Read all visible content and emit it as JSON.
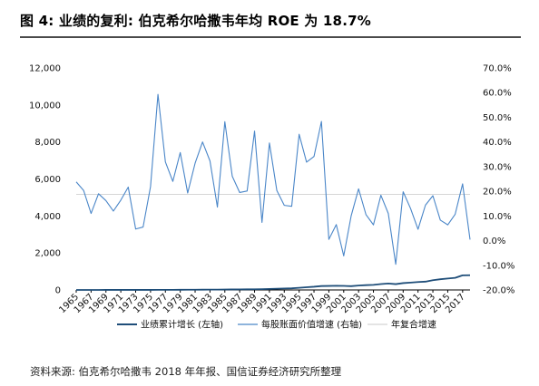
{
  "title": "图 4:  业绩的复利: 伯克希尔哈撒韦年均 ROE 为 18.7%",
  "source": "资料来源: 伯克希尔哈撒韦 2018 年年报、国信证券经济研究所整理",
  "colors": {
    "earnings": "#1f4e79",
    "growth": "#4a86c8",
    "average": "#c8c8c8",
    "axis": "#000000"
  },
  "chart_data": {
    "type": "line",
    "x_tick_labels": [
      "1965",
      "1967",
      "1969",
      "1971",
      "1973",
      "1975",
      "1977",
      "1979",
      "1981",
      "1983",
      "1985",
      "1987",
      "1989",
      "1991",
      "1993",
      "1995",
      "1997",
      "1999",
      "2001",
      "2003",
      "2005",
      "2007",
      "2009",
      "2011",
      "2013",
      "2015",
      "2017"
    ],
    "x": [
      1965,
      1966,
      1967,
      1968,
      1969,
      1970,
      1971,
      1972,
      1973,
      1974,
      1975,
      1976,
      1977,
      1978,
      1979,
      1980,
      1981,
      1982,
      1983,
      1984,
      1985,
      1986,
      1987,
      1988,
      1989,
      1990,
      1991,
      1992,
      1993,
      1994,
      1995,
      1996,
      1997,
      1998,
      1999,
      2000,
      2001,
      2002,
      2003,
      2004,
      2005,
      2006,
      2007,
      2008,
      2009,
      2010,
      2011,
      2012,
      2013,
      2014,
      2015,
      2016,
      2017,
      2018
    ],
    "y_left": {
      "min": 0,
      "max": 12000,
      "step": 2000,
      "tick_labels": [
        "0",
        "2,000",
        "4,000",
        "6,000",
        "8,000",
        "10,000",
        "12,000"
      ]
    },
    "y_right": {
      "min": -20,
      "max": 70,
      "step": 10,
      "tick_labels": [
        "-20.0%",
        "-10.0%",
        "0.0%",
        "10.0%",
        "20.0%",
        "30.0%",
        "40.0%",
        "50.0%",
        "60.0%",
        "70.0%"
      ]
    },
    "series": [
      {
        "name": "业绩累计增长 (左轴)",
        "axis": "left",
        "values": [
          1,
          1.2,
          1.4,
          1.7,
          2,
          2.2,
          2.6,
          3.1,
          3.3,
          3.5,
          4,
          5.4,
          6.7,
          7.2,
          8.9,
          10.7,
          12.6,
          14.5,
          17.6,
          19.6,
          24,
          28,
          31,
          34,
          38,
          42,
          55,
          67,
          79,
          89,
          118,
          146,
          174,
          212,
          218,
          225,
          219,
          204,
          237,
          260,
          275,
          317,
          348,
          316,
          371,
          399,
          427,
          449,
          528,
          578,
          617,
          656,
          791,
          795
        ]
      },
      {
        "name": "每股账面价值增速 (右轴)",
        "axis": "right",
        "values": [
          23.8,
          20.3,
          11.0,
          19.0,
          16.2,
          12.0,
          16.4,
          21.7,
          4.7,
          5.5,
          21.9,
          59.3,
          31.9,
          24.0,
          35.7,
          19.3,
          31.4,
          40.0,
          32.3,
          13.6,
          48.2,
          26.1,
          19.5,
          20.1,
          44.4,
          7.4,
          39.6,
          20.3,
          14.3,
          13.9,
          43.1,
          31.8,
          34.1,
          48.3,
          0.5,
          6.5,
          -6.2,
          10.0,
          21.0,
          10.5,
          6.4,
          18.4,
          11.0,
          -9.6,
          19.8,
          13.0,
          4.6,
          14.4,
          18.2,
          8.3,
          6.4,
          10.7,
          23.0,
          0.4
        ]
      },
      {
        "name": "年复合增速",
        "axis": "right",
        "values": [
          18.7,
          18.7,
          18.7,
          18.7,
          18.7,
          18.7,
          18.7,
          18.7,
          18.7,
          18.7,
          18.7,
          18.7,
          18.7,
          18.7,
          18.7,
          18.7,
          18.7,
          18.7,
          18.7,
          18.7,
          18.7,
          18.7,
          18.7,
          18.7,
          18.7,
          18.7,
          18.7,
          18.7,
          18.7,
          18.7,
          18.7,
          18.7,
          18.7,
          18.7,
          18.7,
          18.7,
          18.7,
          18.7,
          18.7,
          18.7,
          18.7,
          18.7,
          18.7,
          18.7,
          18.7,
          18.7,
          18.7,
          18.7,
          18.7,
          18.7,
          18.7,
          18.7,
          18.7,
          18.7
        ]
      }
    ],
    "legend": {
      "position": "bottom",
      "items": [
        "业绩累计增长 (左轴)",
        "每股账面价值增速 (右轴)",
        "年复合增速"
      ]
    },
    "grid": false
  }
}
